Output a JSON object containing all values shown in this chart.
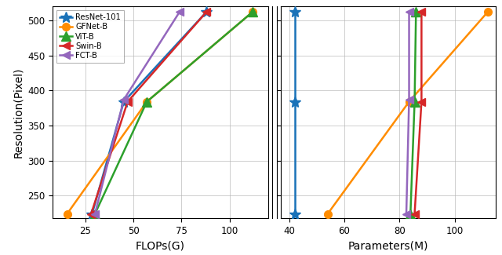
{
  "ylabel": "Resolution(Pixel)",
  "xlabel_left": "FLOPs(G)",
  "xlabel_right": "Parameters(M)",
  "series": [
    {
      "name": "ResNet-101",
      "color": "#1a72b8",
      "marker": "*",
      "markersize": 10,
      "flops": [
        28.5,
        45.0,
        88.0
      ],
      "params": [
        42.0,
        42.0,
        42.0
      ],
      "resolutions": [
        224,
        384,
        512
      ]
    },
    {
      "name": "GFNet-B",
      "color": "#ff8c00",
      "marker": "o",
      "markersize": 7,
      "flops": [
        15.5,
        57.0,
        112.0
      ],
      "params": [
        54.0,
        83.5,
        112.0
      ],
      "resolutions": [
        224,
        384,
        512
      ]
    },
    {
      "name": "ViT-B",
      "color": "#2ca02c",
      "marker": "^",
      "markersize": 8,
      "flops": [
        30.0,
        57.0,
        112.0
      ],
      "params": [
        84.0,
        85.5,
        86.0
      ],
      "resolutions": [
        224,
        384,
        512
      ]
    },
    {
      "name": "Swin-B",
      "color": "#d62728",
      "marker": "<",
      "markersize": 7,
      "flops": [
        28.0,
        47.0,
        88.0
      ],
      "params": [
        85.5,
        88.0,
        88.0
      ],
      "resolutions": [
        224,
        384,
        512
      ]
    },
    {
      "name": "FCT-B",
      "color": "#9467bd",
      "marker": "<",
      "markersize": 7,
      "flops": [
        30.0,
        45.0,
        74.0
      ],
      "params": [
        82.5,
        83.5,
        83.5
      ],
      "resolutions": [
        224,
        387,
        512
      ]
    }
  ],
  "ylim": [
    218,
    520
  ],
  "yticks": [
    250,
    300,
    350,
    400,
    450,
    500
  ],
  "xlim_left": [
    8,
    120
  ],
  "xticks_left": [
    25,
    50,
    75,
    100
  ],
  "xlim_right": [
    37,
    115
  ],
  "xticks_right": [
    40,
    60,
    80,
    100
  ],
  "linewidth": 1.8,
  "grid_color": "#b0b0b0",
  "grid_alpha": 0.7,
  "grid_linewidth": 0.6
}
